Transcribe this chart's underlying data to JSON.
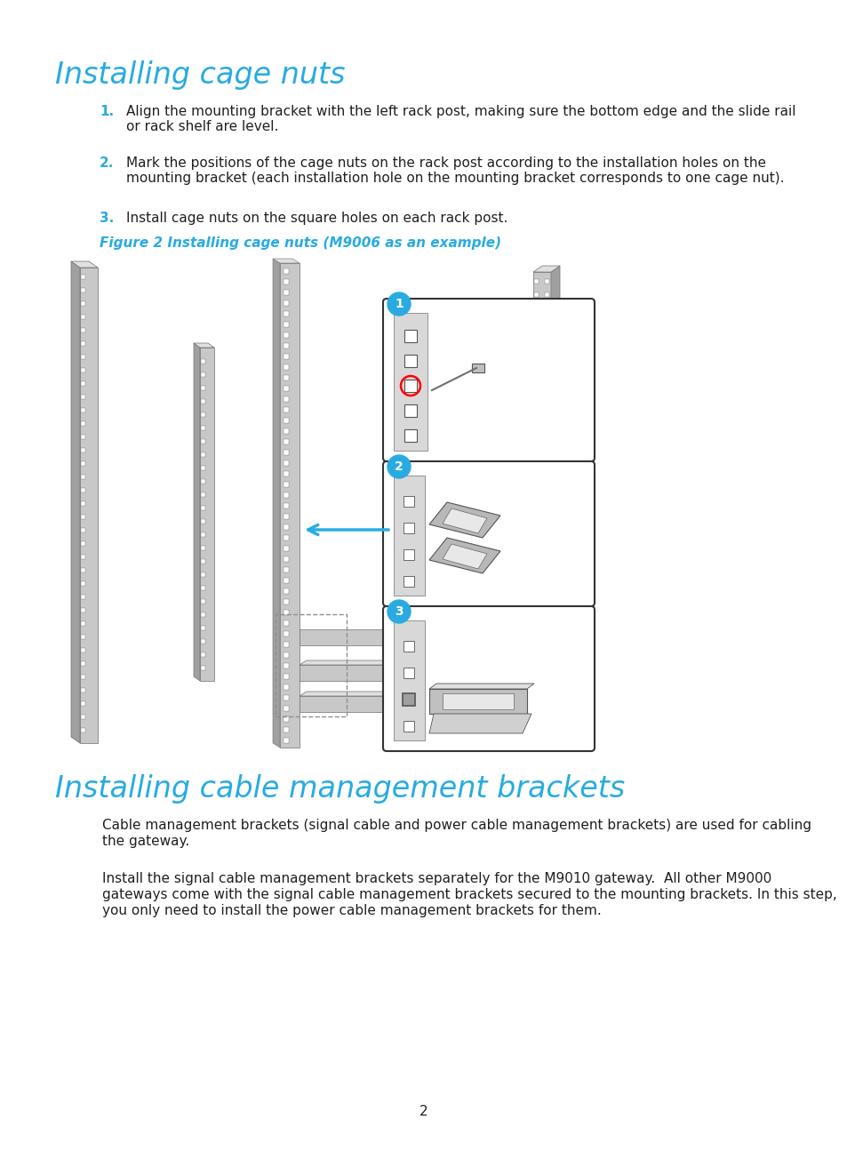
{
  "bg_color": "#ffffff",
  "cyan_color": "#29abe2",
  "dark_text": "#231f20",
  "title1": "Installing cage nuts",
  "title2": "Installing cable management brackets",
  "step1": "Align the mounting bracket with the left rack post, making sure the bottom edge and the slide rail\nor rack shelf are level.",
  "step2": "Mark the positions of the cage nuts on the rack post according to the installation holes on the\nmounting bracket (each installation hole on the mounting bracket corresponds to one cage nut).",
  "step3": "Install cage nuts on the square holes on each rack post.",
  "fig_caption": "Figure 2 Installing cage nuts (M9006 as an example)",
  "para1_line1": "Cable management brackets (signal cable and power cable management brackets) are used for cabling",
  "para1_line2": "the gateway.",
  "para2_line1": "Install the signal cable management brackets separately for the M9010 gateway.  All other M9000",
  "para2_line2": "gateways come with the signal cable management brackets secured to the mounting brackets. In this step,",
  "para2_line3": "you only need to install the power cable management brackets for them.",
  "page_num": "2",
  "gray_light": "#d0d0d0",
  "gray_mid": "#b0b0b0",
  "gray_dark": "#808080",
  "gray_darker": "#606060"
}
